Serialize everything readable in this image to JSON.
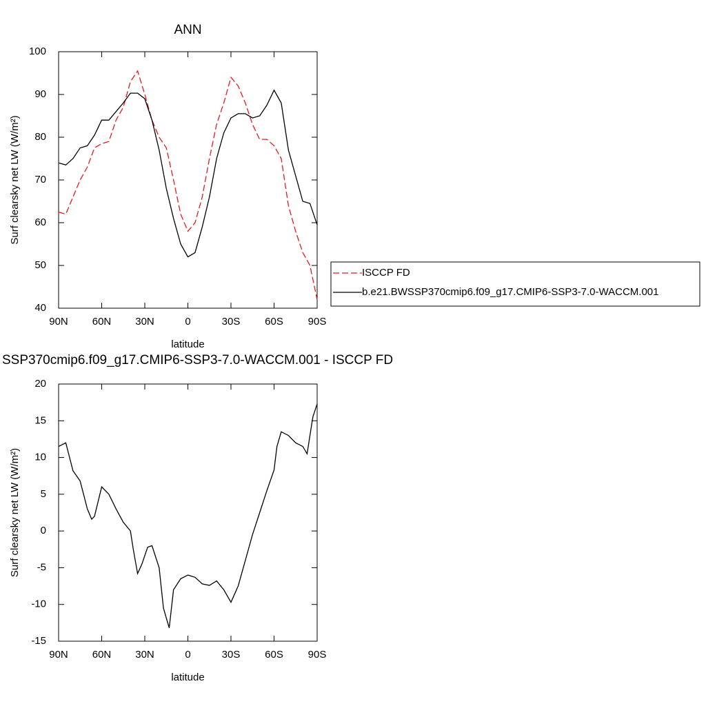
{
  "chart_data": [
    {
      "type": "line",
      "title": "ANN",
      "xlabel": "latitude",
      "ylabel": "Surf clearsky net LW (W/m²)",
      "xlim": [
        90,
        -90
      ],
      "xticks": [
        {
          "value": 90,
          "label": "90N"
        },
        {
          "value": 60,
          "label": "60N"
        },
        {
          "value": 30,
          "label": "30N"
        },
        0,
        {
          "value": -30,
          "label": "30S"
        },
        {
          "value": -60,
          "label": "60S"
        },
        {
          "value": -90,
          "label": "90S"
        }
      ],
      "ylim": [
        40,
        100
      ],
      "yticks": [
        40,
        50,
        60,
        70,
        80,
        90,
        100
      ],
      "x": [
        90,
        85,
        80,
        75,
        70,
        65,
        60,
        55,
        50,
        45,
        40,
        35,
        30,
        25,
        20,
        15,
        10,
        5,
        0,
        -5,
        -10,
        -15,
        -20,
        -25,
        -30,
        -35,
        -40,
        -45,
        -50,
        -55,
        -60,
        -65,
        -70,
        -75,
        -80,
        -85,
        -90
      ],
      "legend": "right",
      "series": [
        {
          "name": "ISCCP FD",
          "color": "#e8171c",
          "line_style": "dashed",
          "values": [
            62.5,
            62,
            66,
            70,
            73,
            77.5,
            78.5,
            79,
            84,
            87,
            93,
            95.5,
            90,
            84,
            80,
            77.5,
            70,
            62,
            58,
            60,
            66,
            75,
            83,
            88,
            94,
            92,
            88,
            83,
            79.5,
            79.5,
            78,
            75,
            64,
            58,
            53,
            50,
            42
          ]
        },
        {
          "name": "b.e21.BWSSP370cmip6.f09_g17.CMIP6-SSP3-7.0-WACCM.001",
          "color": "#000000",
          "line_style": "solid",
          "values": [
            74,
            73.5,
            75,
            77.5,
            78,
            80.5,
            84,
            84,
            86,
            88,
            90.3,
            90.3,
            89,
            84,
            77,
            68,
            61,
            55,
            52,
            53,
            59,
            66,
            75,
            81,
            84.5,
            85.5,
            85.5,
            84.5,
            85,
            87.5,
            91,
            88,
            77,
            71,
            65,
            64.5,
            59.5
          ]
        }
      ]
    },
    {
      "type": "line",
      "title": "SSP370cmip6.f09_g17.CMIP6-SSP3-7.0-WACCM.001 - ISCCP FD",
      "xlabel": "latitude",
      "ylabel": "Surf clearsky net LW (W/m²)",
      "xlim": [
        90,
        -90
      ],
      "xticks": [
        {
          "value": 90,
          "label": "90N"
        },
        {
          "value": 60,
          "label": "60N"
        },
        {
          "value": 30,
          "label": "30N"
        },
        0,
        {
          "value": -30,
          "label": "30S"
        },
        {
          "value": -60,
          "label": "60S"
        },
        {
          "value": -90,
          "label": "90S"
        }
      ],
      "ylim": [
        -15,
        20
      ],
      "yticks": [
        -15,
        -10,
        -5,
        0,
        5,
        10,
        15,
        20
      ],
      "x": [
        90,
        85,
        80,
        75,
        70,
        67,
        65,
        60,
        55,
        50,
        45,
        40,
        38,
        35,
        32,
        28,
        25,
        20,
        17,
        13,
        10,
        5,
        0,
        -5,
        -10,
        -15,
        -20,
        -25,
        -30,
        -35,
        -40,
        -45,
        -50,
        -55,
        -60,
        -62,
        -65,
        -70,
        -75,
        -80,
        -83,
        -87,
        -90
      ],
      "series": [
        {
          "color": "#000000",
          "line_style": "solid",
          "values": [
            11.5,
            12,
            8.2,
            6.8,
            3,
            1.6,
            2,
            6,
            5,
            3,
            1.2,
            0,
            -2.5,
            -5.8,
            -4.5,
            -2.2,
            -2,
            -5,
            -10.5,
            -13.2,
            -8,
            -6.5,
            -6,
            -6.3,
            -7.2,
            -7.4,
            -6.8,
            -8,
            -9.7,
            -7.5,
            -4,
            -0.5,
            2.5,
            5.5,
            8.3,
            11.5,
            13.5,
            13,
            12,
            11.5,
            10.5,
            15.5,
            17.3
          ]
        }
      ]
    }
  ]
}
